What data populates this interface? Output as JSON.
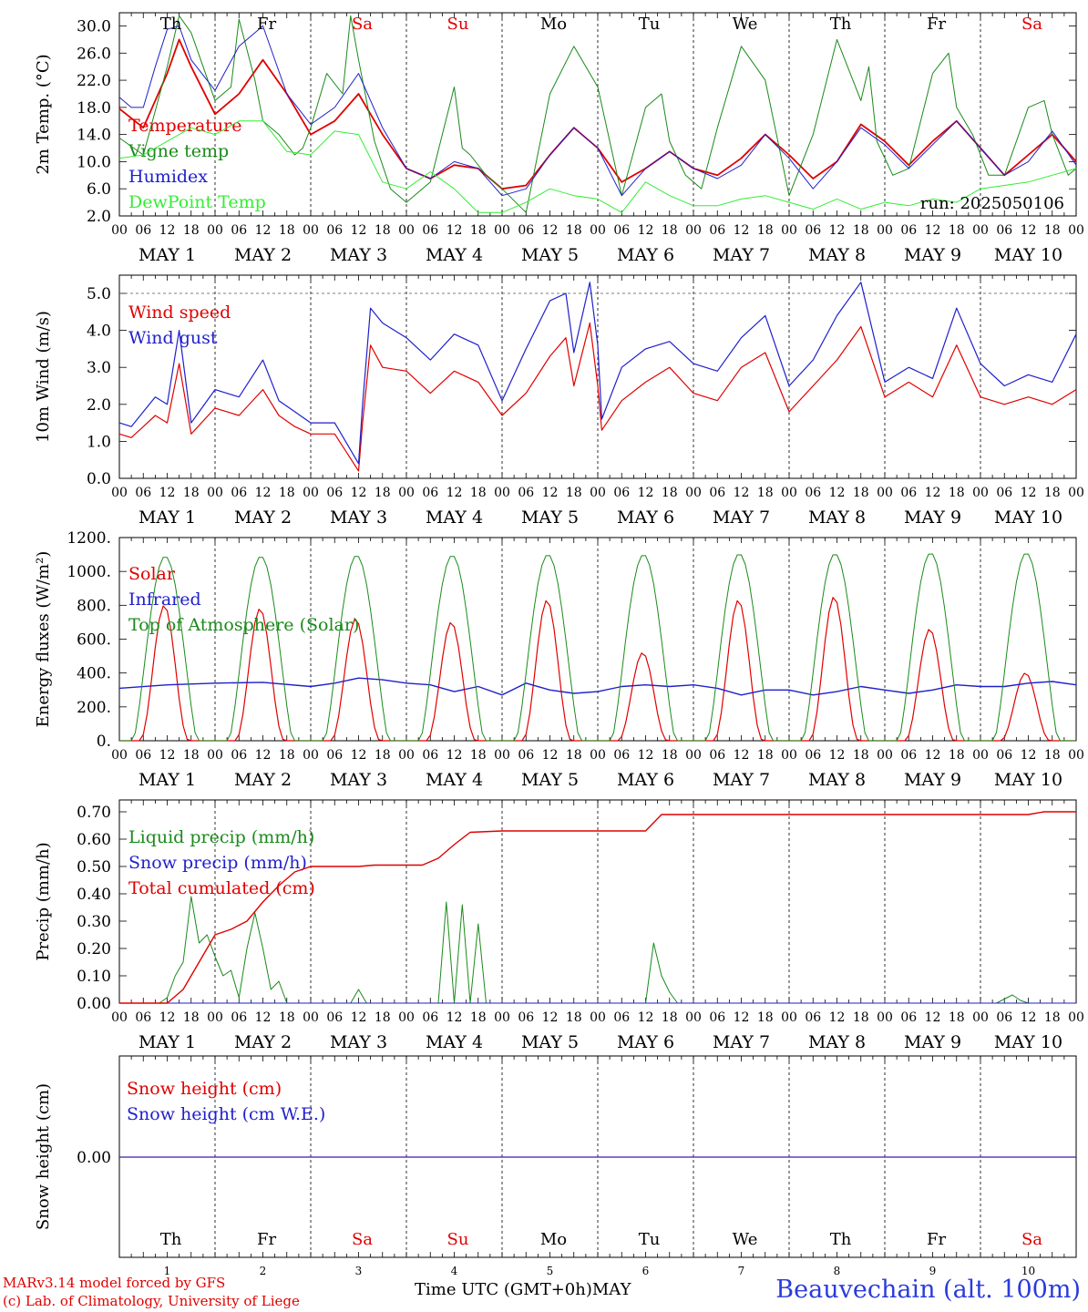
{
  "chart_data": [
    {
      "type": "line",
      "ylabel": "2m Temp. (°C)",
      "ylim": [
        2,
        31.5
      ],
      "yticks": [
        "2.0",
        "6.0",
        "10.0",
        "14.0",
        "18.0",
        "22.0",
        "26.0",
        "30.0"
      ],
      "ytick_values": [
        2,
        6,
        10,
        14,
        18,
        22,
        26,
        30
      ],
      "annotation": "run: 2025050106",
      "series": [
        {
          "name": "Temperature",
          "color": "#e00000",
          "width": 1.8,
          "x": [
            0,
            6,
            12,
            15,
            18,
            24,
            30,
            36,
            42,
            48,
            54,
            60,
            66,
            72,
            78,
            84,
            90,
            96,
            102,
            108,
            114,
            120,
            126,
            132,
            138,
            144,
            150,
            156,
            162,
            168,
            174,
            180,
            186,
            192,
            198,
            204,
            210,
            216,
            222,
            228,
            234,
            240
          ],
          "y": [
            17.8,
            15,
            23,
            28,
            24,
            17,
            20,
            25,
            20,
            14,
            16,
            20,
            14,
            9,
            7.5,
            9.5,
            9,
            6,
            6.5,
            11,
            15,
            12,
            7,
            9,
            11.5,
            9,
            8,
            10.5,
            14,
            11,
            7.5,
            10,
            15.5,
            13,
            9.5,
            13,
            16,
            12,
            8,
            11,
            14,
            10
          ]
        },
        {
          "name": "Vigne temp",
          "color": "#1a8a1a",
          "width": 1.0,
          "x": [
            0,
            6,
            12,
            15,
            18,
            24,
            28,
            30,
            34,
            36,
            40,
            44,
            46,
            48,
            52,
            56,
            58,
            60,
            64,
            68,
            72,
            78,
            84,
            86,
            88,
            92,
            96,
            102,
            108,
            114,
            120,
            126,
            132,
            136,
            138,
            142,
            146,
            150,
            156,
            162,
            168,
            174,
            180,
            186,
            188,
            190,
            194,
            198,
            204,
            208,
            210,
            214,
            218,
            222,
            228,
            232,
            234,
            238,
            240
          ],
          "y": [
            13.5,
            11,
            24,
            31.5,
            29,
            19,
            21,
            31,
            22,
            16,
            14,
            11,
            12,
            15,
            23,
            20,
            31.5,
            25,
            13,
            6,
            4,
            7,
            21,
            12,
            11,
            8,
            6,
            2.5,
            20,
            27,
            21,
            5,
            18,
            20,
            13,
            8,
            6,
            15,
            27,
            22,
            5,
            14,
            28,
            19,
            24,
            13,
            8,
            9,
            23,
            26,
            18,
            14,
            8,
            8,
            18,
            19,
            14,
            8,
            9
          ]
        },
        {
          "name": "Humidex",
          "color": "#1f1fcc",
          "width": 1.0,
          "x": [
            0,
            3,
            6,
            9,
            12,
            15,
            18,
            24,
            30,
            36,
            42,
            48,
            54,
            60,
            66,
            72,
            78,
            84,
            90,
            96,
            102,
            108,
            114,
            120,
            126,
            132,
            138,
            144,
            150,
            156,
            162,
            168,
            174,
            180,
            186,
            192,
            198,
            204,
            210,
            216,
            222,
            228,
            234,
            240
          ],
          "y": [
            19.5,
            18,
            18,
            24,
            29.5,
            30,
            25,
            20.5,
            27,
            30,
            20,
            15.5,
            18,
            23,
            15,
            9,
            7.5,
            10,
            9,
            5,
            6,
            11,
            15,
            12,
            5,
            9,
            11.5,
            9,
            7.5,
            9.5,
            14,
            10.5,
            6,
            10,
            15,
            12.5,
            9,
            12.5,
            16,
            12,
            8,
            10,
            14.5,
            9.5
          ]
        },
        {
          "name": "DewPoint Temp",
          "color": "#33ee33",
          "width": 1.0,
          "x": [
            0,
            6,
            12,
            18,
            24,
            30,
            36,
            42,
            48,
            54,
            60,
            66,
            72,
            78,
            84,
            90,
            96,
            102,
            108,
            114,
            120,
            126,
            132,
            138,
            144,
            150,
            156,
            162,
            168,
            174,
            180,
            186,
            192,
            198,
            204,
            210,
            216,
            222,
            228,
            234,
            240
          ],
          "y": [
            10.5,
            11,
            13,
            15,
            14,
            16,
            16,
            11.5,
            11,
            14.5,
            14,
            7,
            6,
            8.5,
            6,
            2.5,
            2.5,
            4,
            6,
            5,
            4.5,
            2.5,
            7,
            5,
            3.5,
            3.5,
            4.5,
            5,
            4,
            3,
            4.5,
            3,
            4,
            3.5,
            4.5,
            4,
            6,
            6.5,
            7,
            8,
            9
          ]
        }
      ]
    },
    {
      "type": "line",
      "ylabel": "10m Wind (m/s)",
      "ylim": [
        0,
        5.5
      ],
      "yticks": [
        "0.0",
        "1.0",
        "2.0",
        "3.0",
        "4.0",
        "5.0"
      ],
      "ytick_values": [
        0,
        1,
        2,
        3,
        4,
        5
      ],
      "ref_line": 5.0,
      "series": [
        {
          "name": "Wind speed",
          "color": "#e00000",
          "width": 1.2,
          "x": [
            0,
            3,
            6,
            9,
            12,
            15,
            18,
            24,
            30,
            36,
            40,
            44,
            48,
            54,
            60,
            61,
            63,
            66,
            72,
            78,
            84,
            90,
            96,
            102,
            108,
            112,
            114,
            118,
            120,
            121,
            126,
            132,
            138,
            144,
            150,
            156,
            162,
            168,
            174,
            180,
            186,
            192,
            198,
            204,
            210,
            216,
            222,
            228,
            234,
            240
          ],
          "y": [
            1.2,
            1.1,
            1.4,
            1.7,
            1.5,
            3.1,
            1.2,
            1.9,
            1.7,
            2.4,
            1.7,
            1.4,
            1.2,
            1.2,
            0.2,
            1.5,
            3.6,
            3.0,
            2.9,
            2.3,
            2.9,
            2.6,
            1.7,
            2.3,
            3.3,
            3.8,
            2.5,
            4.2,
            2.5,
            1.3,
            2.1,
            2.6,
            3.0,
            2.3,
            2.1,
            3.0,
            3.4,
            1.8,
            2.5,
            3.2,
            4.1,
            2.2,
            2.6,
            2.2,
            3.6,
            2.2,
            2.0,
            2.2,
            2.0,
            2.4
          ]
        },
        {
          "name": "Wind gust",
          "color": "#1f1fcc",
          "width": 1.2,
          "x": [
            0,
            3,
            6,
            9,
            12,
            15,
            18,
            24,
            30,
            36,
            40,
            44,
            48,
            54,
            60,
            61,
            63,
            66,
            72,
            78,
            84,
            90,
            96,
            102,
            108,
            112,
            114,
            118,
            120,
            121,
            126,
            132,
            138,
            144,
            150,
            156,
            162,
            168,
            174,
            180,
            186,
            192,
            198,
            204,
            210,
            216,
            222,
            228,
            234,
            240
          ],
          "y": [
            1.5,
            1.4,
            1.8,
            2.2,
            2.0,
            4.0,
            1.5,
            2.4,
            2.2,
            3.2,
            2.1,
            1.8,
            1.5,
            1.5,
            0.4,
            2.0,
            4.6,
            4.2,
            3.8,
            3.2,
            3.9,
            3.6,
            2.1,
            3.5,
            4.8,
            5.0,
            3.4,
            5.3,
            3.6,
            1.6,
            3.0,
            3.5,
            3.7,
            3.1,
            2.9,
            3.8,
            4.4,
            2.5,
            3.2,
            4.4,
            5.3,
            2.6,
            3.0,
            2.7,
            4.6,
            3.1,
            2.5,
            2.8,
            2.6,
            3.9
          ]
        }
      ]
    },
    {
      "type": "line",
      "ylabel": "Energy fluxes (W/m²)",
      "ylim": [
        0,
        1200
      ],
      "yticks": [
        "0.",
        "200.",
        "400.",
        "600.",
        "800.",
        "1000.",
        "1200."
      ],
      "ytick_values": [
        0,
        200,
        400,
        600,
        800,
        1000,
        1200
      ],
      "series": [
        {
          "name": "Solar",
          "color": "#e00000",
          "width": 1.2,
          "day_peaks": [
            800,
            780,
            720,
            700,
            830,
            520,
            830,
            850,
            660,
            400
          ]
        },
        {
          "name": "Infrared",
          "color": "#1f1fcc",
          "width": 1.4,
          "x": [
            0,
            12,
            24,
            36,
            48,
            54,
            60,
            66,
            72,
            78,
            84,
            90,
            96,
            102,
            108,
            114,
            120,
            126,
            132,
            138,
            144,
            150,
            156,
            162,
            168,
            174,
            180,
            186,
            192,
            198,
            204,
            210,
            216,
            222,
            228,
            234,
            240
          ],
          "y": [
            310,
            330,
            340,
            345,
            320,
            340,
            370,
            360,
            340,
            330,
            290,
            320,
            270,
            340,
            300,
            280,
            290,
            320,
            330,
            320,
            330,
            310,
            270,
            300,
            300,
            270,
            290,
            320,
            300,
            280,
            300,
            330,
            320,
            320,
            340,
            350,
            330
          ]
        },
        {
          "name": "Top of Atmosphere (Solar)",
          "color": "#1a8a1a",
          "width": 1.0,
          "day_peaks": [
            1090,
            1090,
            1095,
            1095,
            1100,
            1100,
            1105,
            1105,
            1110,
            1110
          ]
        }
      ]
    },
    {
      "type": "line",
      "ylabel": "Precip (mm/h)",
      "ylim": [
        0,
        0.76
      ],
      "yticks": [
        "0.00",
        "0.10",
        "0.20",
        "0.30",
        "0.40",
        "0.50",
        "0.60",
        "0.70"
      ],
      "ytick_values": [
        0,
        0.1,
        0.2,
        0.3,
        0.4,
        0.5,
        0.6,
        0.7
      ],
      "series": [
        {
          "name": "Liquid precip (mm/h)",
          "color": "#1a8a1a",
          "width": 1.0,
          "x": [
            0,
            10,
            12,
            14,
            16,
            18,
            20,
            22,
            24,
            26,
            28,
            30,
            32,
            34,
            36,
            38,
            40,
            42,
            44,
            46,
            48,
            58,
            60,
            62,
            70,
            80,
            82,
            84,
            86,
            88,
            90,
            92,
            120,
            132,
            134,
            136,
            138,
            140,
            144,
            220,
            224,
            226,
            228,
            240
          ],
          "y": [
            0,
            0,
            0.02,
            0.1,
            0.15,
            0.39,
            0.22,
            0.25,
            0.17,
            0.1,
            0.12,
            0.02,
            0.2,
            0.33,
            0.2,
            0.05,
            0.08,
            0,
            0,
            0,
            0,
            0,
            0.05,
            0,
            0,
            0,
            0.37,
            0,
            0.36,
            0,
            0.29,
            0,
            0,
            0,
            0.22,
            0.1,
            0.04,
            0,
            0,
            0,
            0.03,
            0.01,
            0,
            0
          ]
        },
        {
          "name": "Snow precip (mm/h)",
          "color": "#1f1fcc",
          "width": 1.0,
          "x": [
            0,
            240
          ],
          "y": [
            0,
            0
          ]
        },
        {
          "name": "Total cumulated (cm)",
          "color": "#e00000",
          "width": 1.4,
          "x": [
            0,
            12,
            16,
            20,
            24,
            28,
            32,
            36,
            40,
            44,
            48,
            56,
            60,
            64,
            72,
            76,
            80,
            84,
            88,
            96,
            120,
            132,
            136,
            144,
            216,
            228,
            232,
            240
          ],
          "y": [
            0,
            0,
            0.05,
            0.15,
            0.25,
            0.27,
            0.3,
            0.37,
            0.43,
            0.48,
            0.5,
            0.5,
            0.5,
            0.505,
            0.505,
            0.505,
            0.53,
            0.58,
            0.625,
            0.63,
            0.63,
            0.63,
            0.69,
            0.69,
            0.69,
            0.69,
            0.7,
            0.7
          ]
        }
      ]
    },
    {
      "type": "line",
      "ylabel": "Snow height (cm)",
      "yticks": [
        "0.00"
      ],
      "series": [
        {
          "name": "Snow height (cm)",
          "color": "#e00000",
          "width": 1.2,
          "x": [
            0,
            240
          ],
          "y": [
            0,
            0
          ]
        },
        {
          "name": "Snow height (cm W.E.)",
          "color": "#1f1fcc",
          "width": 1.0,
          "x": [
            0,
            240
          ],
          "y": [
            0,
            0
          ]
        }
      ]
    }
  ],
  "x_axis": {
    "hour_labels": [
      "00",
      "06",
      "12",
      "18"
    ],
    "end_label": "00",
    "day_labels": [
      "MAY  1",
      "MAY  2",
      "MAY  3",
      "MAY  4",
      "MAY  5",
      "MAY  6",
      "MAY  7",
      "MAY  8",
      "MAY  9",
      "MAY 10"
    ],
    "weekday_labels": [
      "Th",
      "Fr",
      "Sa",
      "Su",
      "Mo",
      "Tu",
      "We",
      "Th",
      "Fr",
      "Sa"
    ],
    "weekday_colors": [
      "#000000",
      "#000000",
      "#e00000",
      "#e00000",
      "#000000",
      "#000000",
      "#000000",
      "#000000",
      "#000000",
      "#e00000"
    ],
    "day_numbers": [
      "1",
      "2",
      "3",
      "4",
      "5",
      "6",
      "7",
      "8",
      "9",
      "10"
    ],
    "xlabel": "Time UTC (GMT+0h)",
    "xlabel_month": "MAY"
  },
  "footer": {
    "credit_line1": "MARv3.14 model forced by GFS",
    "credit_line2": "(c) Lab. of Climatology, University of Liege",
    "station": "Beauvechain (alt. 100m)"
  }
}
